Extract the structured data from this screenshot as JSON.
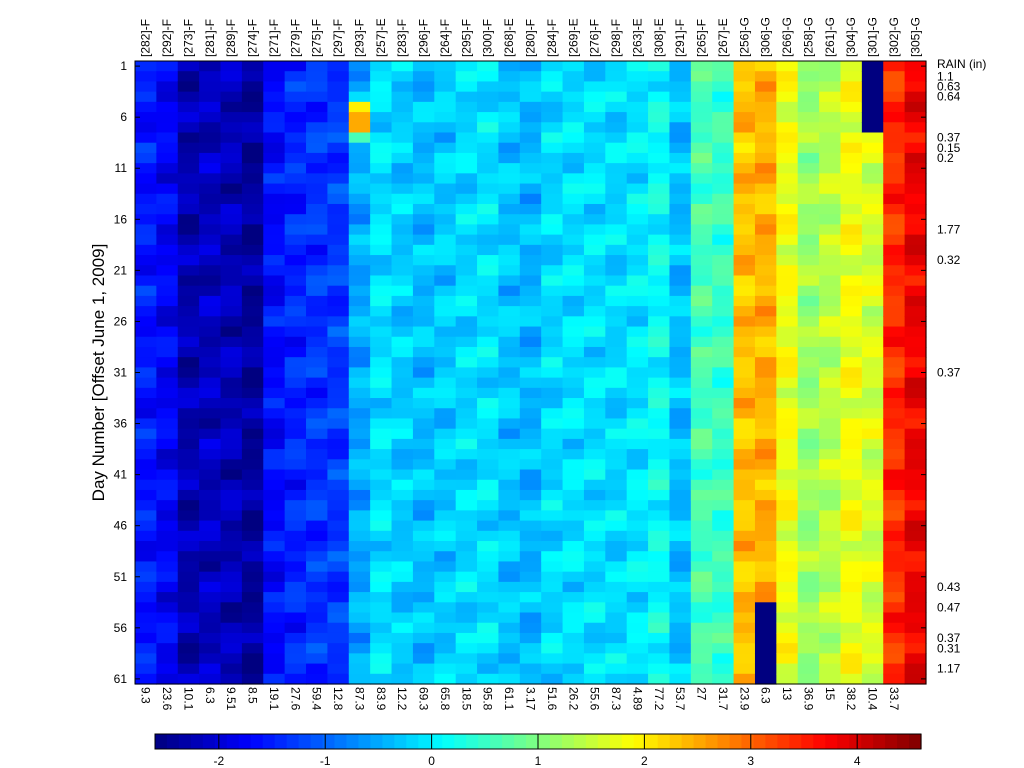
{
  "chart_data": {
    "type": "heatmap",
    "title": "",
    "xlabel": "",
    "ylabel": "Day Number [Offset June 1, 2009]",
    "columns_top": [
      "[282]-F",
      "[292]-F",
      "[273]-F",
      "[281]-F",
      "[289]-F",
      "[274]-F",
      "[271]-F",
      "[279]-F",
      "[275]-F",
      "[297]-F",
      "[293]-F",
      "[257]-E",
      "[283]-F",
      "[296]-F",
      "[264]-F",
      "[295]-F",
      "[300]-F",
      "[268]-E",
      "[280]-F",
      "[284]-F",
      "[269]-E",
      "[276]-F",
      "[298]-F",
      "[263]-E",
      "[308]-E",
      "[291]-F",
      "[265]-F",
      "[267]-E",
      "[256]-G",
      "[306]-G",
      "[266]-G",
      "[258]-G",
      "[261]-G",
      "[304]-G",
      "[301]-G",
      "[302]-G",
      "[305]-G"
    ],
    "columns_bottom": [
      "9.3",
      "23.6",
      "10.1",
      "6.3",
      "9.51",
      "8.5",
      "19.1",
      "27.6",
      "59.4",
      "12.8",
      "87.3",
      "83.9",
      "12.2",
      "69.3",
      "65.8",
      "18.5",
      "95.8",
      "61.1",
      "3.17",
      "51.6",
      "26.2",
      "55.6",
      "87.3",
      "4.89",
      "77.2",
      "53.7",
      "27",
      "31.7",
      "23.9",
      "6.3",
      "13",
      "36.9",
      "15",
      "38.2",
      "10.4",
      "33.7",
      ""
    ],
    "column_base_values": [
      -1.55,
      -1.75,
      -2.25,
      -2.15,
      -2.2,
      -2.4,
      -1.65,
      -1.45,
      -1.35,
      -1.3,
      -0.5,
      -0.1,
      -0.25,
      -0.35,
      -0.25,
      -0.15,
      -0.1,
      -0.3,
      -0.4,
      -0.15,
      -0.1,
      -0.1,
      -0.15,
      -0.05,
      0.15,
      -0.35,
      0.6,
      0.5,
      2.35,
      2.45,
      1.8,
      1.2,
      1.4,
      1.8,
      1.6,
      3.4,
      3.8
    ],
    "y_ticks": [
      "1",
      "6",
      "11",
      "16",
      "21",
      "26",
      "31",
      "36",
      "41",
      "46",
      "51",
      "56",
      "61"
    ],
    "y_range": [
      1,
      61
    ],
    "rain_header": "RAIN (in)",
    "rain_labels": [
      {
        "day": 2,
        "value": "1.1"
      },
      {
        "day": 3,
        "value": "0.63"
      },
      {
        "day": 4,
        "value": "0.64"
      },
      {
        "day": 8,
        "value": "0.37"
      },
      {
        "day": 9,
        "value": "0.15"
      },
      {
        "day": 10,
        "value": "0.2"
      },
      {
        "day": 17,
        "value": "1.77"
      },
      {
        "day": 20,
        "value": "0.32"
      },
      {
        "day": 31,
        "value": "0.37"
      },
      {
        "day": 52,
        "value": "0.43"
      },
      {
        "day": 54,
        "value": "0.47"
      },
      {
        "day": 57,
        "value": "0.37"
      },
      {
        "day": 58,
        "value": "0.31"
      },
      {
        "day": 60,
        "value": "1.17"
      }
    ],
    "special_cells": [
      {
        "column": "[301]-G",
        "days": [
          1,
          7
        ],
        "value": -2.6
      },
      {
        "column": "[306]-G",
        "days": [
          54,
          61
        ],
        "value": -2.6
      },
      {
        "column": "[293]-F",
        "days": [
          5,
          5
        ],
        "value": 2.0
      },
      {
        "column": "[293]-F",
        "days": [
          6,
          7
        ],
        "value": 2.5
      },
      {
        "column": "[293]-F",
        "days": [
          8,
          8
        ],
        "value": 0.6
      }
    ],
    "colorbar": {
      "range": [
        -2.6,
        4.6
      ],
      "ticks": [
        "-2",
        "-1",
        "0",
        "1",
        "2",
        "3",
        "4"
      ],
      "colormap": "jet"
    }
  }
}
